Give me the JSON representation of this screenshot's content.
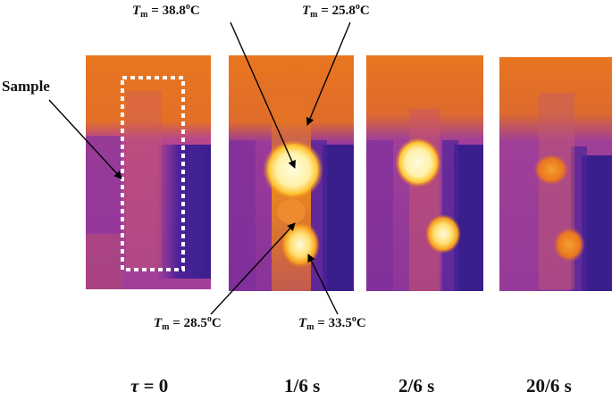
{
  "figure": {
    "sample_label": "Sample",
    "temperature_annotations": [
      {
        "prefix": "T",
        "sub": "m",
        "value": " = 38.8",
        "sup": "o",
        "unit": "C"
      },
      {
        "prefix": "T",
        "sub": "m",
        "value": " = 25.8",
        "sup": "o",
        "unit": "C"
      },
      {
        "prefix": "T",
        "sub": "m",
        "value": " = 28.5",
        "sup": "o",
        "unit": "C"
      },
      {
        "prefix": "T",
        "sub": "m",
        "value": " = 33.5",
        "sup": "o",
        "unit": "C"
      }
    ],
    "time_labels": [
      {
        "symbol": "τ",
        "text": " = 0"
      },
      {
        "symbol": "",
        "text": "1/6 s"
      },
      {
        "symbol": "",
        "text": "2/6 s"
      },
      {
        "symbol": "",
        "text": "20/6 s"
      }
    ],
    "colors": {
      "hot_orange": "#e8761f",
      "mid_magenta": "#b83f8a",
      "cool_purple": "#6a2a9a",
      "deep_blue": "#3a1e8c",
      "hot_spot": "#fffbe0",
      "hot_glow": "#ffc430",
      "sample_box": "#ffffff"
    },
    "panels": [
      {
        "name": "thermal-panel-t0",
        "hot_spots": []
      },
      {
        "name": "thermal-panel-t1",
        "hot_spots": [
          "upper",
          "lower"
        ]
      },
      {
        "name": "thermal-panel-t2",
        "hot_spots": [
          "upper",
          "lower"
        ]
      },
      {
        "name": "thermal-panel-t3",
        "hot_spots": [
          "upper-faded",
          "lower-faded"
        ]
      }
    ]
  }
}
